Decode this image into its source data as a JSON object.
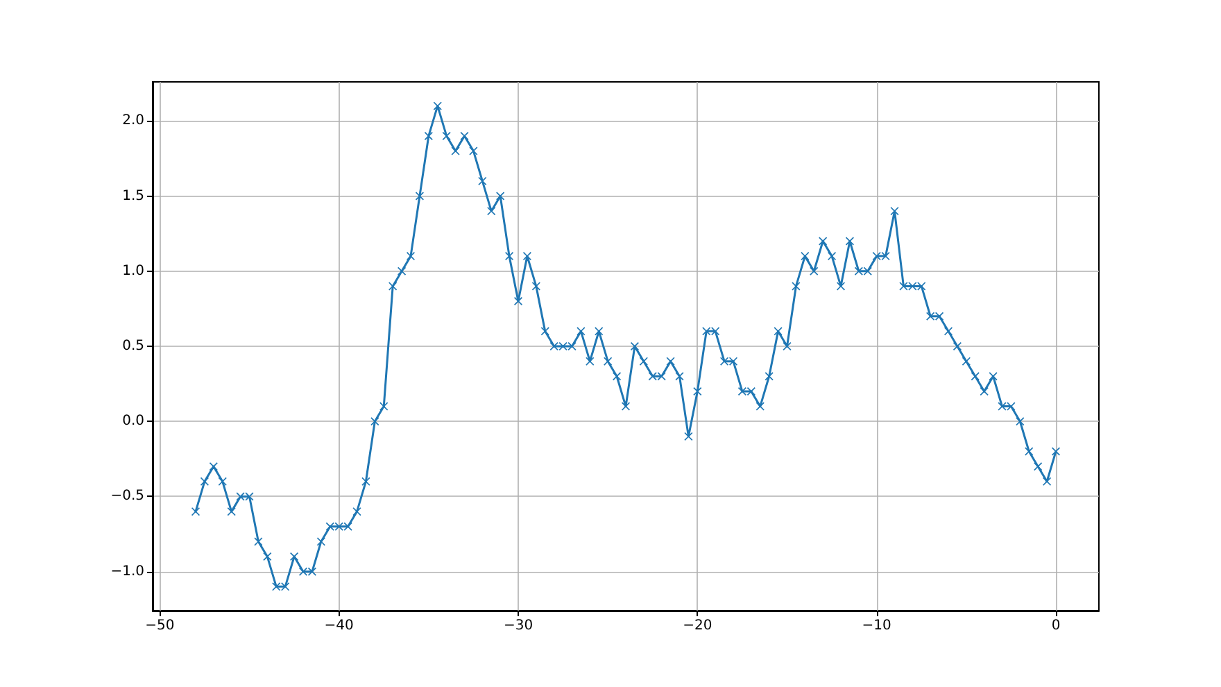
{
  "chart_data": {
    "type": "line",
    "x": [
      -48,
      -47.5,
      -47,
      -46.5,
      -46,
      -45.5,
      -45,
      -44.5,
      -44,
      -43.5,
      -43,
      -42.5,
      -42,
      -41.5,
      -41,
      -40.5,
      -40,
      -39.5,
      -39,
      -38.5,
      -38,
      -37.5,
      -37,
      -36.5,
      -36,
      -35.5,
      -35,
      -34.5,
      -34,
      -33.5,
      -33,
      -32.5,
      -32,
      -31.5,
      -31,
      -30.5,
      -30,
      -29.5,
      -29,
      -28.5,
      -28,
      -27.5,
      -27,
      -26.5,
      -26,
      -25.5,
      -25,
      -24.5,
      -24,
      -23.5,
      -23,
      -22.5,
      -22,
      -21.5,
      -21,
      -20.5,
      -20,
      -19.5,
      -19,
      -18.5,
      -18,
      -17.5,
      -17,
      -16.5,
      -16,
      -15.5,
      -15,
      -14.5,
      -14,
      -13.5,
      -13,
      -12.5,
      -12,
      -11.5,
      -11,
      -10.5,
      -10,
      -9.5,
      -9,
      -8.5,
      -8,
      -7.5,
      -7,
      -6.5,
      -6,
      -5.5,
      -5,
      -4.5,
      -4,
      -3.5,
      -3,
      -2.5,
      -2,
      -1.5,
      -1,
      -0.5,
      0
    ],
    "values": [
      -0.6,
      -0.4,
      -0.3,
      -0.4,
      -0.6,
      -0.5,
      -0.5,
      -0.8,
      -0.9,
      -1.1,
      -1.1,
      -0.9,
      -1.0,
      -1.0,
      -0.8,
      -0.7,
      -0.7,
      -0.7,
      -0.6,
      -0.4,
      0.0,
      0.1,
      0.9,
      1.0,
      1.1,
      1.5,
      1.9,
      2.1,
      1.9,
      1.8,
      1.9,
      1.8,
      1.6,
      1.4,
      1.5,
      1.1,
      0.8,
      1.1,
      0.9,
      0.6,
      0.5,
      0.5,
      0.5,
      0.6,
      0.4,
      0.6,
      0.4,
      0.3,
      0.1,
      0.5,
      0.4,
      0.3,
      0.3,
      0.4,
      0.3,
      -0.1,
      0.2,
      0.6,
      0.6,
      0.4,
      0.4,
      0.2,
      0.2,
      0.1,
      0.3,
      0.6,
      0.5,
      0.9,
      1.1,
      1.0,
      1.2,
      1.1,
      0.9,
      1.2,
      1.0,
      1.0,
      1.1,
      1.1,
      1.4,
      0.9,
      0.9,
      0.9,
      0.7,
      0.7,
      0.6,
      0.5,
      0.4,
      0.3,
      0.2,
      0.3,
      0.1,
      0.1,
      0.0,
      -0.2,
      -0.3,
      -0.4,
      -0.2
    ],
    "color": "#1f77b4",
    "marker": "cross",
    "line_style": "solid",
    "grid": true,
    "xlim": [
      -50.4,
      2.4
    ],
    "xticks": [
      {
        "value": -50,
        "label": "−50"
      },
      {
        "value": -40,
        "label": "−40"
      },
      {
        "value": -30,
        "label": "−30"
      },
      {
        "value": -20,
        "label": "−20"
      },
      {
        "value": -10,
        "label": "−10"
      },
      {
        "value": 0,
        "label": "0"
      }
    ],
    "ylim": [
      -1.26,
      2.26
    ],
    "yticks": [
      {
        "value": -1.0,
        "label": "−1.0"
      },
      {
        "value": -0.5,
        "label": "−0.5"
      },
      {
        "value": 0.0,
        "label": "0.0"
      },
      {
        "value": 0.5,
        "label": "0.5"
      },
      {
        "value": 1.0,
        "label": "1.0"
      },
      {
        "value": 1.5,
        "label": "1.5"
      },
      {
        "value": 2.0,
        "label": "2.0"
      }
    ]
  }
}
